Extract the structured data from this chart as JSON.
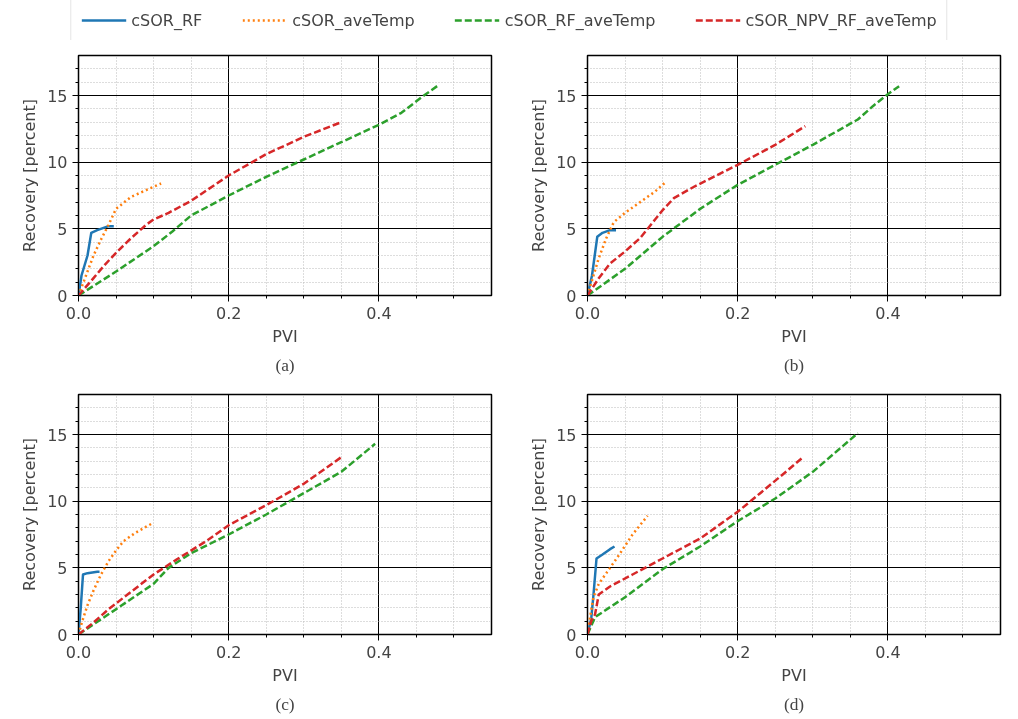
{
  "chart_data": [
    {
      "type": "line",
      "xlabel": "PVI",
      "ylabel": "Recovery [percent]",
      "annotations": [
        "(a)"
      ],
      "legend": "top",
      "grid": true,
      "xlim": [
        0,
        0.55
      ],
      "ylim": [
        0,
        18
      ],
      "xticks": [
        {
          "value": 0,
          "label": "0.0"
        },
        {
          "value": 0.05,
          "label": null
        },
        {
          "value": 0.1,
          "label": null
        },
        {
          "value": 0.15,
          "label": null
        },
        {
          "value": 0.2,
          "label": "0.2"
        },
        {
          "value": 0.25,
          "label": null
        },
        {
          "value": 0.3,
          "label": null
        },
        {
          "value": 0.35,
          "label": null
        },
        {
          "value": 0.4,
          "label": "0.4"
        },
        {
          "value": 0.45,
          "label": null
        },
        {
          "value": 0.5,
          "label": null
        }
      ],
      "yticks": [
        0,
        {
          "value": 1,
          "label": null
        },
        {
          "value": 2,
          "label": null
        },
        {
          "value": 3,
          "label": null
        },
        {
          "value": 4,
          "label": null
        },
        5,
        {
          "value": 6,
          "label": null
        },
        {
          "value": 7,
          "label": null
        },
        {
          "value": 8,
          "label": null
        },
        {
          "value": 9,
          "label": null
        },
        10,
        {
          "value": 11,
          "label": null
        },
        {
          "value": 12,
          "label": null
        },
        {
          "value": 13,
          "label": null
        },
        {
          "value": 14,
          "label": null
        },
        15,
        {
          "value": 16,
          "label": null
        },
        {
          "value": 17,
          "label": null
        }
      ],
      "series": [
        {
          "name": "cSOR_RF",
          "color": "#1f77b4",
          "line_style": "solid",
          "x": [
            0,
            0.004,
            0.012,
            0.017,
            0.025,
            0.04,
            0.047
          ],
          "values": [
            0,
            1.5,
            3,
            4.7,
            4.9,
            5.2,
            5.2
          ]
        },
        {
          "name": "cSOR_aveTemp",
          "color": "#ff7f0e",
          "line_style": "dotted",
          "x": [
            0,
            0.01,
            0.02,
            0.03,
            0.04,
            0.05,
            0.07,
            0.09,
            0.11
          ],
          "values": [
            0,
            1.5,
            3,
            4.2,
            5.3,
            6.5,
            7.4,
            7.9,
            8.4
          ]
        },
        {
          "name": "cSOR_RF_aveTemp",
          "color": "#2ca02c",
          "line_style": "dashed",
          "x": [
            0,
            0.05,
            0.1,
            0.125,
            0.15,
            0.2,
            0.25,
            0.3,
            0.35,
            0.4,
            0.43,
            0.46,
            0.48
          ],
          "values": [
            0,
            1.8,
            3.7,
            4.8,
            6,
            7.5,
            8.9,
            10.2,
            11.5,
            12.8,
            13.7,
            15,
            15.8
          ]
        },
        {
          "name": "cSOR_NPV_RF_aveTemp",
          "color": "#d62728",
          "line_style": "dashed",
          "x": [
            0,
            0.02,
            0.035,
            0.05,
            0.07,
            0.09,
            0.1,
            0.12,
            0.15,
            0.2,
            0.25,
            0.3,
            0.35
          ],
          "values": [
            0,
            1.3,
            2.3,
            3.2,
            4.3,
            5.3,
            5.7,
            6.2,
            7.1,
            9,
            10.6,
            11.9,
            13.0
          ]
        }
      ]
    },
    {
      "type": "line",
      "xlabel": "PVI",
      "ylabel": "Recovery [percent]",
      "annotations": [
        "(b)"
      ],
      "grid": true,
      "xlim": [
        0,
        0.55
      ],
      "ylim": [
        0,
        18
      ],
      "xticks": [
        {
          "value": 0,
          "label": "0.0"
        },
        {
          "value": 0.05,
          "label": null
        },
        {
          "value": 0.1,
          "label": null
        },
        {
          "value": 0.15,
          "label": null
        },
        {
          "value": 0.2,
          "label": "0.2"
        },
        {
          "value": 0.25,
          "label": null
        },
        {
          "value": 0.3,
          "label": null
        },
        {
          "value": 0.35,
          "label": null
        },
        {
          "value": 0.4,
          "label": "0.4"
        },
        {
          "value": 0.45,
          "label": null
        },
        {
          "value": 0.5,
          "label": null
        }
      ],
      "yticks": [
        0,
        {
          "value": 1,
          "label": null
        },
        {
          "value": 2,
          "label": null
        },
        {
          "value": 3,
          "label": null
        },
        {
          "value": 4,
          "label": null
        },
        5,
        {
          "value": 6,
          "label": null
        },
        {
          "value": 7,
          "label": null
        },
        {
          "value": 8,
          "label": null
        },
        {
          "value": 9,
          "label": null
        },
        10,
        {
          "value": 11,
          "label": null
        },
        {
          "value": 12,
          "label": null
        },
        {
          "value": 13,
          "label": null
        },
        {
          "value": 14,
          "label": null
        },
        15,
        {
          "value": 16,
          "label": null
        },
        {
          "value": 17,
          "label": null
        }
      ],
      "series": [
        {
          "color": "#1f77b4",
          "line_style": "solid",
          "x": [
            0,
            0.006,
            0.013,
            0.02,
            0.03,
            0.038
          ],
          "values": [
            0,
            1.5,
            4.4,
            4.7,
            4.9,
            4.9
          ]
        },
        {
          "color": "#ff7f0e",
          "line_style": "dotted",
          "x": [
            0,
            0.008,
            0.015,
            0.025,
            0.035,
            0.05,
            0.07,
            0.09,
            0.104
          ],
          "values": [
            0,
            1.5,
            2.8,
            4.3,
            5.5,
            6.2,
            7.0,
            7.8,
            8.5
          ]
        },
        {
          "color": "#2ca02c",
          "line_style": "dashed",
          "x": [
            0,
            0.05,
            0.1,
            0.15,
            0.2,
            0.25,
            0.3,
            0.36,
            0.38,
            0.4,
            0.415
          ],
          "values": [
            0,
            2,
            4.4,
            6.5,
            8.3,
            9.8,
            11.3,
            13.2,
            14.2,
            15.1,
            15.7
          ]
        },
        {
          "color": "#d62728",
          "line_style": "dashed",
          "x": [
            0,
            0.015,
            0.03,
            0.05,
            0.07,
            0.09,
            0.1,
            0.115,
            0.14,
            0.2,
            0.25,
            0.29
          ],
          "values": [
            0,
            1.3,
            2.4,
            3.3,
            4.3,
            5.7,
            6.4,
            7.3,
            8.1,
            9.8,
            11.3,
            12.7
          ]
        }
      ]
    },
    {
      "type": "line",
      "xlabel": "PVI",
      "ylabel": "Recovery [percent]",
      "annotations": [
        "(c)"
      ],
      "grid": true,
      "xlim": [
        0,
        0.55
      ],
      "ylim": [
        0,
        18
      ],
      "xticks": [
        {
          "value": 0,
          "label": "0.0"
        },
        {
          "value": 0.05,
          "label": null
        },
        {
          "value": 0.1,
          "label": null
        },
        {
          "value": 0.15,
          "label": null
        },
        {
          "value": 0.2,
          "label": "0.2"
        },
        {
          "value": 0.25,
          "label": null
        },
        {
          "value": 0.3,
          "label": null
        },
        {
          "value": 0.35,
          "label": null
        },
        {
          "value": 0.4,
          "label": "0.4"
        },
        {
          "value": 0.45,
          "label": null
        },
        {
          "value": 0.5,
          "label": null
        }
      ],
      "yticks": [
        0,
        {
          "value": 1,
          "label": null
        },
        {
          "value": 2,
          "label": null
        },
        {
          "value": 3,
          "label": null
        },
        {
          "value": 4,
          "label": null
        },
        5,
        {
          "value": 6,
          "label": null
        },
        {
          "value": 7,
          "label": null
        },
        {
          "value": 8,
          "label": null
        },
        {
          "value": 9,
          "label": null
        },
        10,
        {
          "value": 11,
          "label": null
        },
        {
          "value": 12,
          "label": null
        },
        {
          "value": 13,
          "label": null
        },
        {
          "value": 14,
          "label": null
        },
        15,
        {
          "value": 16,
          "label": null
        },
        {
          "value": 17,
          "label": null
        }
      ],
      "series": [
        {
          "color": "#1f77b4",
          "line_style": "solid",
          "x": [
            0,
            0.003,
            0.006,
            0.012,
            0.025,
            0.028
          ],
          "values": [
            0,
            2,
            4.5,
            4.6,
            4.7,
            4.7
          ]
        },
        {
          "color": "#ff7f0e",
          "line_style": "dotted",
          "x": [
            0,
            0.005,
            0.012,
            0.02,
            0.03,
            0.04,
            0.05,
            0.06,
            0.075,
            0.097
          ],
          "values": [
            0,
            1,
            2.2,
            3.3,
            4.5,
            5.5,
            6.3,
            7,
            7.6,
            8.3
          ]
        },
        {
          "color": "#2ca02c",
          "line_style": "dashed",
          "x": [
            0,
            0.05,
            0.1,
            0.12,
            0.15,
            0.2,
            0.25,
            0.3,
            0.35,
            0.395
          ],
          "values": [
            0,
            1.9,
            3.8,
            5,
            6.1,
            7.5,
            9,
            10.6,
            12.2,
            14.3
          ]
        },
        {
          "color": "#d62728",
          "line_style": "dashed",
          "x": [
            0,
            0.02,
            0.04,
            0.07,
            0.1,
            0.13,
            0.17,
            0.2,
            0.25,
            0.3,
            0.35
          ],
          "values": [
            0,
            0.9,
            1.9,
            3.2,
            4.5,
            5.6,
            7,
            8.2,
            9.7,
            11.3,
            13.3
          ]
        }
      ]
    },
    {
      "type": "line",
      "xlabel": "PVI",
      "ylabel": "Recovery [percent]",
      "annotations": [
        "(d)"
      ],
      "grid": true,
      "xlim": [
        0,
        0.55
      ],
      "ylim": [
        0,
        18
      ],
      "xticks": [
        {
          "value": 0,
          "label": "0.0"
        },
        {
          "value": 0.05,
          "label": null
        },
        {
          "value": 0.1,
          "label": null
        },
        {
          "value": 0.15,
          "label": null
        },
        {
          "value": 0.2,
          "label": "0.2"
        },
        {
          "value": 0.25,
          "label": null
        },
        {
          "value": 0.3,
          "label": null
        },
        {
          "value": 0.35,
          "label": null
        },
        {
          "value": 0.4,
          "label": "0.4"
        },
        {
          "value": 0.45,
          "label": null
        },
        {
          "value": 0.5,
          "label": null
        }
      ],
      "yticks": [
        0,
        {
          "value": 1,
          "label": null
        },
        {
          "value": 2,
          "label": null
        },
        {
          "value": 3,
          "label": null
        },
        {
          "value": 4,
          "label": null
        },
        5,
        {
          "value": 6,
          "label": null
        },
        {
          "value": 7,
          "label": null
        },
        {
          "value": 8,
          "label": null
        },
        {
          "value": 9,
          "label": null
        },
        10,
        {
          "value": 11,
          "label": null
        },
        {
          "value": 12,
          "label": null
        },
        {
          "value": 13,
          "label": null
        },
        {
          "value": 14,
          "label": null
        },
        15,
        {
          "value": 16,
          "label": null
        },
        {
          "value": 17,
          "label": null
        }
      ],
      "series": [
        {
          "color": "#1f77b4",
          "line_style": "solid",
          "x": [
            0,
            0.005,
            0.008,
            0.012,
            0.02,
            0.03,
            0.036
          ],
          "values": [
            0,
            1.2,
            3,
            5.7,
            6,
            6.4,
            6.6
          ]
        },
        {
          "color": "#ff7f0e",
          "line_style": "dotted",
          "x": [
            0,
            0.004,
            0.008,
            0.015,
            0.025,
            0.04,
            0.06,
            0.08
          ],
          "values": [
            0,
            1.5,
            2.8,
            3.8,
            4.6,
            5.8,
            7.5,
            8.9
          ]
        },
        {
          "color": "#2ca02c",
          "line_style": "dashed",
          "x": [
            0,
            0.01,
            0.05,
            0.1,
            0.15,
            0.2,
            0.25,
            0.3,
            0.36
          ],
          "values": [
            0,
            1.3,
            2.8,
            4.9,
            6.6,
            8.5,
            10.2,
            12.2,
            15.1
          ]
        },
        {
          "color": "#d62728",
          "line_style": "dashed",
          "x": [
            0,
            0.005,
            0.01,
            0.015,
            0.03,
            0.06,
            0.1,
            0.15,
            0.2,
            0.23,
            0.26,
            0.285
          ],
          "values": [
            0,
            1,
            1.5,
            3,
            3.6,
            4.5,
            5.7,
            7.2,
            9.2,
            10.6,
            12,
            13.2
          ]
        }
      ]
    }
  ]
}
